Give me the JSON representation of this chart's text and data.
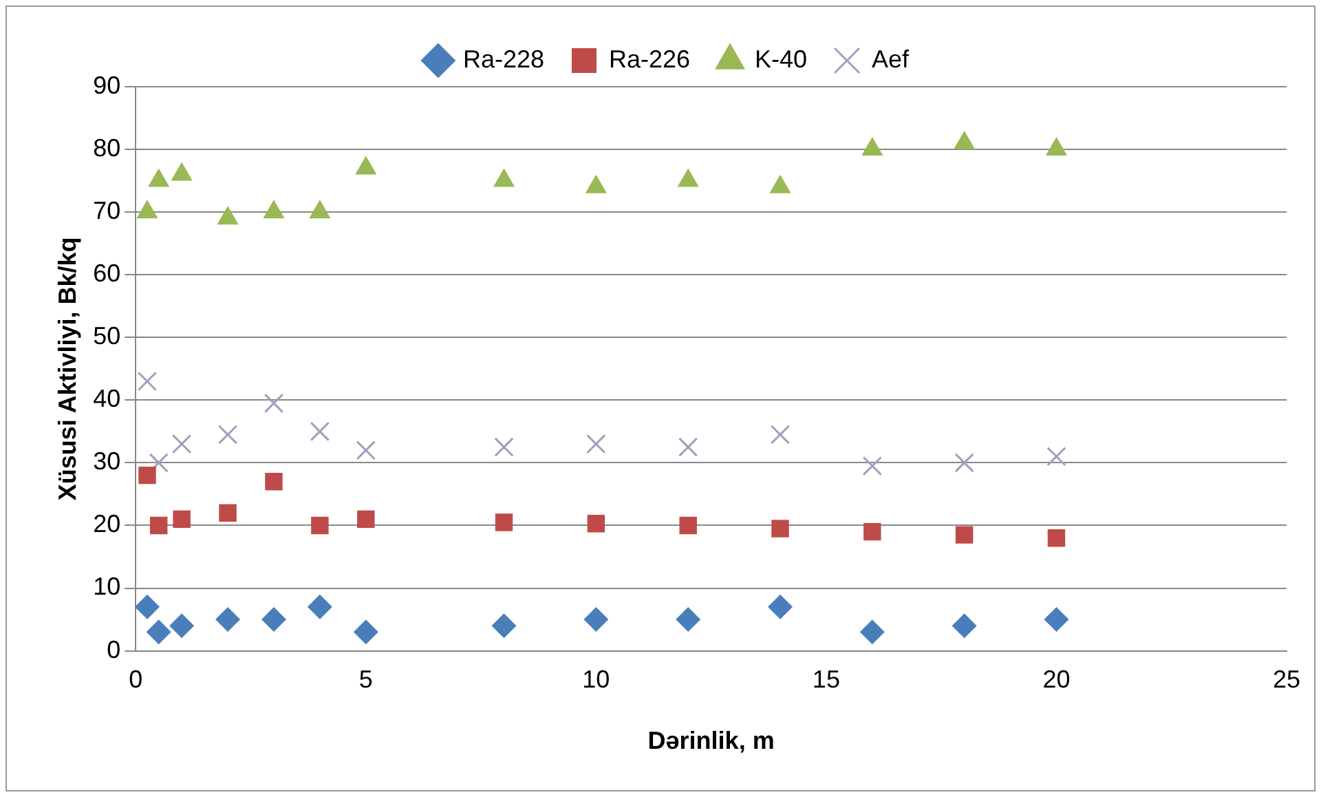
{
  "chart_data": {
    "type": "scatter",
    "xlabel": "Dərinlik, m",
    "ylabel": "Xüsusi Aktivliyi, Bk/kq",
    "x": [
      0.25,
      0.5,
      1,
      2,
      3,
      4,
      5,
      8,
      10,
      12,
      14,
      16,
      18,
      20
    ],
    "xlim": [
      0,
      25
    ],
    "xticks": [
      0,
      5,
      10,
      15,
      20,
      25
    ],
    "ylim": [
      0,
      90
    ],
    "yticks": [
      0,
      10,
      20,
      30,
      40,
      50,
      60,
      70,
      80,
      90
    ],
    "grid": "y",
    "legend": "top",
    "series": [
      {
        "name": "Ra-228",
        "color": "#4a7ebb",
        "marker": "diamond",
        "values": [
          7,
          3,
          4,
          5,
          5,
          7,
          3,
          4,
          5,
          5,
          7,
          3,
          4,
          5
        ]
      },
      {
        "name": "Ra-226",
        "color": "#be4b48",
        "marker": "square",
        "values": [
          28,
          20,
          21,
          22,
          27,
          20,
          21,
          20.5,
          20.3,
          20,
          19.5,
          19,
          18.5,
          18
        ]
      },
      {
        "name": "K-40",
        "color": "#98b954",
        "marker": "triangle",
        "values": [
          70,
          75,
          76,
          69,
          70,
          70,
          77,
          75,
          74,
          75,
          74,
          80,
          81,
          80
        ]
      },
      {
        "name": "Aef",
        "color": "#a99bbd",
        "marker": "cross",
        "values": [
          43,
          30,
          33,
          34.5,
          39.5,
          35,
          32,
          32.5,
          33,
          32.5,
          34.5,
          29.5,
          30,
          31
        ]
      }
    ]
  }
}
